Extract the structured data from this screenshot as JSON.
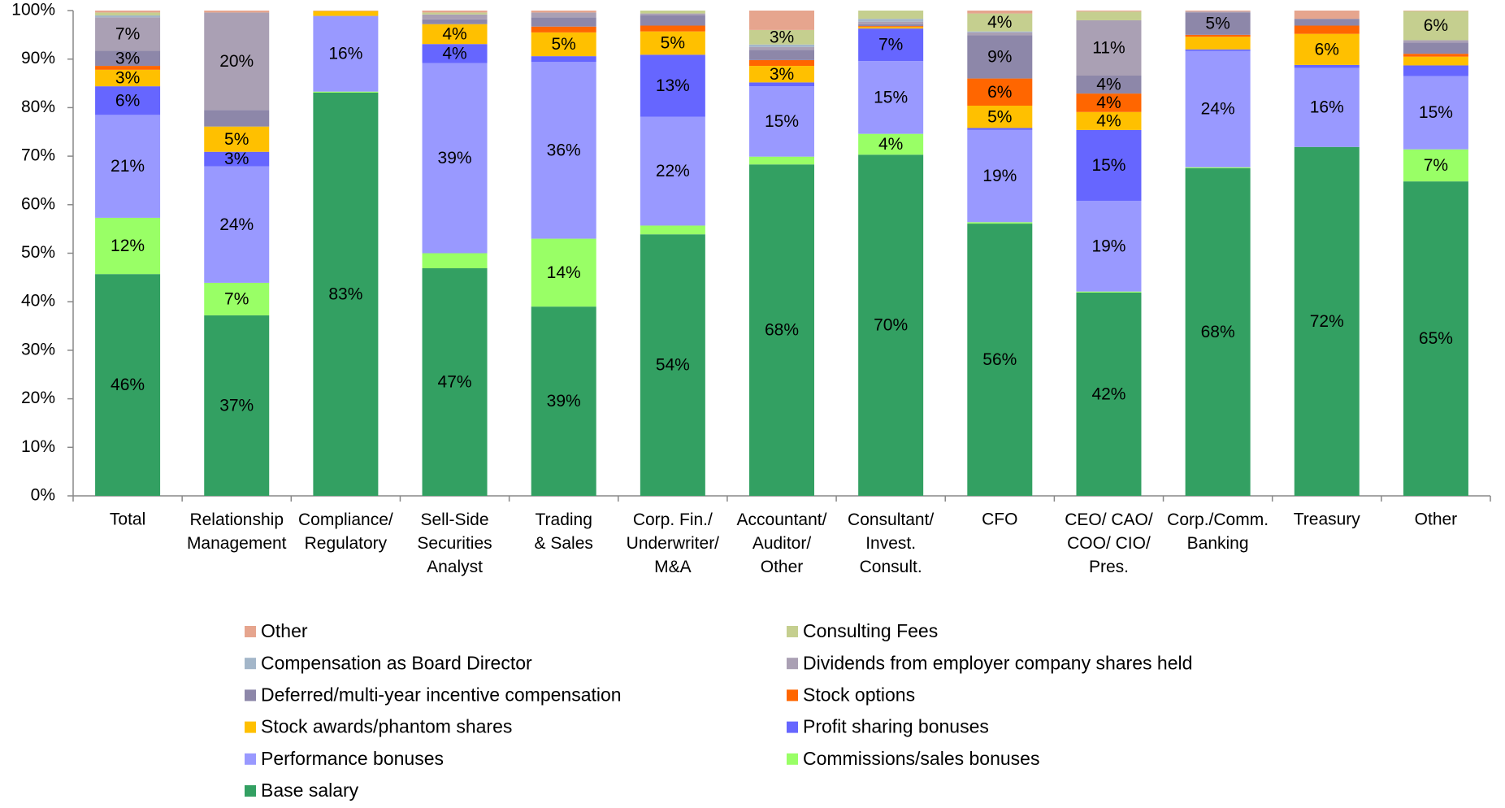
{
  "chart_data": {
    "type": "stacked_bar",
    "categories": [
      "Total",
      "Relationship\nManagement",
      "Compliance/\nRegulatory",
      "Sell-Side\nSecurities\nAnalyst",
      "Trading\n& Sales",
      "Corp. Fin./\nUnderwriter/\nM&A",
      "Accountant/\nAuditor/\nOther",
      "Consultant/\nInvest.\nConsult.",
      "CFO",
      "CEO/ CAO/\nCOO/ CIO/\nPres.",
      "Corp./Comm.\nBanking",
      "Treasury",
      "Other"
    ],
    "ylim": [
      0,
      100
    ],
    "yticks": [
      {
        "value": 0,
        "label": "0%"
      },
      {
        "value": 10,
        "label": "10%"
      },
      {
        "value": 20,
        "label": "20%"
      },
      {
        "value": 30,
        "label": "30%"
      },
      {
        "value": 40,
        "label": "40%"
      },
      {
        "value": 50,
        "label": "50%"
      },
      {
        "value": 60,
        "label": "60%"
      },
      {
        "value": 70,
        "label": "70%"
      },
      {
        "value": 80,
        "label": "80%"
      },
      {
        "value": 90,
        "label": "90%"
      },
      {
        "value": 100,
        "label": "100%"
      }
    ],
    "grid": false,
    "legend": "bottom",
    "series": [
      {
        "name": "Base salary",
        "color": "#33a062",
        "values": [
          45.7,
          37.2,
          83.1,
          46.9,
          39.0,
          53.9,
          68.3,
          70.3,
          56.1,
          41.9,
          67.5,
          71.9,
          64.8
        ],
        "value_labels": [
          "46%",
          "37%",
          "83%",
          "47%",
          "39%",
          "54%",
          "68%",
          "70%",
          "56%",
          "42%",
          "68%",
          "72%",
          "65%"
        ]
      },
      {
        "name": "Commissions/sales bonuses",
        "color": "#99ff66",
        "values": [
          11.6,
          6.7,
          0.2,
          3.1,
          14.0,
          1.8,
          1.6,
          4.3,
          0.3,
          0.2,
          0.2,
          0,
          6.6
        ],
        "value_labels": [
          "12%",
          "7%",
          null,
          null,
          "14%",
          null,
          null,
          "4%",
          null,
          null,
          null,
          null,
          "7%"
        ]
      },
      {
        "name": "Performance bonuses",
        "color": "#9999ff",
        "values": [
          21.2,
          24.0,
          15.6,
          39.2,
          36.4,
          22.4,
          14.5,
          15.0,
          19.0,
          18.7,
          24.0,
          16.3,
          15.1
        ],
        "value_labels": [
          "21%",
          "24%",
          "16%",
          "39%",
          "36%",
          "22%",
          "15%",
          "15%",
          "19%",
          "19%",
          "24%",
          "16%",
          "15%"
        ]
      },
      {
        "name": "Profit sharing bonuses",
        "color": "#6666ff",
        "values": [
          5.9,
          3.0,
          0,
          3.9,
          1.2,
          12.8,
          0.8,
          6.7,
          0.4,
          14.6,
          0.3,
          0.6,
          2.2
        ],
        "value_labels": [
          "6%",
          "3%",
          null,
          "4%",
          null,
          "13%",
          null,
          "7%",
          null,
          "15%",
          null,
          null,
          null
        ]
      },
      {
        "name": "Stock awards/phantom shares",
        "color": "#ffc000",
        "values": [
          3.4,
          5.2,
          1.0,
          4.1,
          4.9,
          4.8,
          3.4,
          0.3,
          4.6,
          3.7,
          2.6,
          6.4,
          1.8
        ],
        "value_labels": [
          "3%",
          "5%",
          null,
          "4%",
          "5%",
          "5%",
          "3%",
          null,
          "5%",
          "4%",
          null,
          "6%",
          null
        ]
      },
      {
        "name": "Stock options",
        "color": "#ff6600",
        "values": [
          0.8,
          0,
          0,
          0,
          1.2,
          1.2,
          1.2,
          0.2,
          5.6,
          3.8,
          0.4,
          1.7,
          0.6
        ],
        "value_labels": [
          null,
          null,
          null,
          null,
          null,
          null,
          null,
          null,
          "6%",
          "4%",
          null,
          null,
          null
        ]
      },
      {
        "name": "Deferred/multi-year incentive compensation",
        "color": "#8d87a9",
        "values": [
          3.1,
          3.4,
          0,
          1.0,
          1.9,
          2.1,
          2.1,
          0.4,
          8.9,
          3.7,
          4.6,
          1.4,
          2.3
        ],
        "value_labels": [
          "3%",
          null,
          null,
          null,
          null,
          null,
          null,
          null,
          "9%",
          "4%",
          "5%",
          null,
          null
        ]
      },
      {
        "name": "Dividends from employer company shares held",
        "color": "#aaa0b4",
        "values": [
          6.9,
          20.1,
          0,
          1.0,
          1.0,
          0.4,
          0.6,
          0.5,
          0.6,
          11.4,
          0.2,
          0,
          0.5
        ],
        "value_labels": [
          "7%",
          "20%",
          null,
          null,
          null,
          null,
          null,
          null,
          null,
          "11%",
          null,
          null,
          null
        ]
      },
      {
        "name": "Compensation as Board Director",
        "color": "#a3b6c9",
        "values": [
          0.4,
          0,
          0,
          0,
          0,
          0,
          0.5,
          0.6,
          0.2,
          0,
          0,
          0,
          0
        ]
      },
      {
        "name": "Consulting Fees",
        "color": "#c5cf8f",
        "values": [
          0.6,
          0,
          0,
          0.4,
          0,
          0.6,
          3.0,
          1.7,
          3.7,
          1.8,
          0,
          0,
          6.0
        ],
        "value_labels": [
          null,
          null,
          null,
          null,
          null,
          null,
          "3%",
          null,
          "4%",
          null,
          null,
          null,
          "6%"
        ]
      },
      {
        "name": "Other",
        "color": "#e6a58e",
        "values": [
          0.4,
          0.4,
          0.1,
          0.4,
          0.4,
          0,
          4.0,
          0,
          0.6,
          0.2,
          0.2,
          1.7,
          0.1
        ]
      }
    ]
  }
}
